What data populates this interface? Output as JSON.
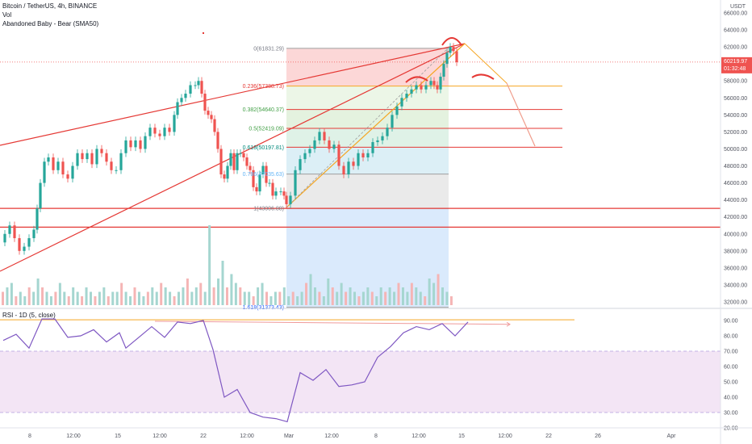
{
  "header": {
    "symbol_line": "Bitcoin / TetherUS, 4h, BINANCE",
    "vol_label": "Vol",
    "indicator_label": "Abandoned Baby - Bear (SMA50)",
    "rsi_label": "RSI - 1D (5, close)"
  },
  "price_axis": {
    "currency": "USDT",
    "ticks": [
      "66000.00",
      "64000.00",
      "62000.00",
      "60000.00",
      "58000.00",
      "56000.00",
      "54000.00",
      "52000.00",
      "50000.00",
      "48000.00",
      "46000.00",
      "44000.00",
      "42000.00",
      "40000.00",
      "38000.00",
      "36000.00",
      "34000.00",
      "32000.00"
    ],
    "last_price": "60219.97",
    "countdown": "01:32:48"
  },
  "rsi_axis": {
    "ticks": [
      "90.00",
      "80.00",
      "70.00",
      "60.00",
      "50.00",
      "40.00",
      "30.00",
      "20.00"
    ]
  },
  "time_axis": {
    "ticks": [
      "8",
      "12:00",
      "15",
      "12:00",
      "22",
      "12:00",
      "Mar",
      "12:00",
      "8",
      "12:00",
      "15",
      "12:00",
      "22",
      "26",
      "Apr"
    ]
  },
  "fib_labels": [
    "0(61831.29)",
    "0.236(57388.73)",
    "0.382(54640.37)",
    "0.5(52419.09)",
    "0.618(50197.81)",
    "0.786(47035.63)",
    "1(43006.88)",
    "1.618(31373.43)"
  ],
  "colors": {
    "up": "#26a69a",
    "down": "#ef5350",
    "trendline": "#e53935",
    "fib_orange": "#f5a623",
    "rsi_line": "#7e57c2",
    "rsi_band": "#f3e5f5",
    "last_price_tag": "#ef5350"
  },
  "chart_data": {
    "type": "candlestick",
    "ylim": [
      31500,
      67000
    ],
    "rsi_ylim": [
      15,
      95
    ],
    "price_path": [
      [
        0,
        39000
      ],
      [
        6,
        40000
      ],
      [
        12,
        41000
      ],
      [
        18,
        39500
      ],
      [
        24,
        38000
      ],
      [
        30,
        38500
      ],
      [
        36,
        39500
      ],
      [
        42,
        40500
      ],
      [
        46,
        43000
      ],
      [
        50,
        46000
      ],
      [
        55,
        48500
      ],
      [
        60,
        49000
      ],
      [
        66,
        47500
      ],
      [
        72,
        48500
      ],
      [
        78,
        47000
      ],
      [
        84,
        46500
      ],
      [
        90,
        48000
      ],
      [
        96,
        49500
      ],
      [
        102,
        48800
      ],
      [
        108,
        49500
      ],
      [
        114,
        48200
      ],
      [
        120,
        50000
      ],
      [
        126,
        49500
      ],
      [
        132,
        48500
      ],
      [
        138,
        47500
      ],
      [
        144,
        47500
      ],
      [
        150,
        49500
      ],
      [
        156,
        51000
      ],
      [
        162,
        50200
      ],
      [
        168,
        51000
      ],
      [
        174,
        50000
      ],
      [
        180,
        51500
      ],
      [
        186,
        52500
      ],
      [
        192,
        51800
      ],
      [
        198,
        51500
      ],
      [
        204,
        52500
      ],
      [
        210,
        52000
      ],
      [
        216,
        54000
      ],
      [
        220,
        55500
      ],
      [
        225,
        56000
      ],
      [
        230,
        56500
      ],
      [
        236,
        57500
      ],
      [
        242,
        57500
      ],
      [
        246,
        58000
      ],
      [
        250,
        56500
      ],
      [
        254,
        54500
      ],
      [
        258,
        54000
      ],
      [
        262,
        53500
      ],
      [
        266,
        52000
      ],
      [
        270,
        50000
      ],
      [
        274,
        47000
      ],
      [
        278,
        46500
      ],
      [
        282,
        48000
      ],
      [
        286,
        49500
      ],
      [
        290,
        47500
      ],
      [
        294,
        49500
      ],
      [
        298,
        49500
      ],
      [
        302,
        49000
      ],
      [
        306,
        48000
      ],
      [
        310,
        47500
      ],
      [
        314,
        45500
      ],
      [
        318,
        45000
      ],
      [
        322,
        47000
      ],
      [
        326,
        48000
      ],
      [
        330,
        46000
      ],
      [
        334,
        46000
      ],
      [
        338,
        44500
      ],
      [
        342,
        45000
      ],
      [
        348,
        45000
      ],
      [
        352,
        44500
      ],
      [
        355,
        43500
      ],
      [
        360,
        44500
      ],
      [
        366,
        47500
      ],
      [
        372,
        48800
      ],
      [
        378,
        49500
      ],
      [
        384,
        50000
      ],
      [
        390,
        51000
      ],
      [
        396,
        52000
      ],
      [
        402,
        51000
      ],
      [
        408,
        50000
      ],
      [
        414,
        50500
      ],
      [
        420,
        48000
      ],
      [
        426,
        47000
      ],
      [
        432,
        48500
      ],
      [
        438,
        48000
      ],
      [
        444,
        49500
      ],
      [
        450,
        49000
      ],
      [
        456,
        49500
      ],
      [
        462,
        50800
      ],
      [
        468,
        51000
      ],
      [
        474,
        51500
      ],
      [
        480,
        52500
      ],
      [
        486,
        54000
      ],
      [
        492,
        55000
      ],
      [
        498,
        56000
      ],
      [
        504,
        56500
      ],
      [
        510,
        57000
      ],
      [
        516,
        57500
      ],
      [
        522,
        57000
      ],
      [
        528,
        57500
      ],
      [
        534,
        58000
      ],
      [
        538,
        57500
      ],
      [
        542,
        57000
      ],
      [
        546,
        58500
      ],
      [
        550,
        60000
      ],
      [
        554,
        61300
      ],
      [
        558,
        62000
      ],
      [
        562,
        61500
      ],
      [
        566,
        60200
      ]
    ],
    "volume": [
      3,
      4,
      5,
      2,
      3,
      2,
      4,
      3,
      6,
      4,
      3,
      2,
      3,
      5,
      3,
      2,
      4,
      3,
      2,
      4,
      3,
      2,
      3,
      4,
      2,
      3,
      3,
      5,
      3,
      2,
      4,
      3,
      2,
      3,
      4,
      3,
      5,
      4,
      3,
      2,
      3,
      4,
      6,
      3,
      4,
      5,
      3,
      18,
      4,
      6,
      10,
      4,
      7,
      5,
      4,
      3,
      3,
      2,
      4,
      5,
      3,
      2,
      3,
      3,
      4,
      2,
      3,
      2,
      3,
      5,
      7,
      4,
      3,
      2,
      6,
      4,
      3,
      5,
      3,
      4,
      3,
      2,
      3,
      4,
      3,
      2,
      4,
      3,
      4,
      3,
      5,
      4,
      3,
      5,
      4,
      3,
      2,
      6,
      5,
      7,
      4,
      3,
      2
    ],
    "rsi": [
      [
        4,
        77
      ],
      [
        20,
        81
      ],
      [
        36,
        72
      ],
      [
        52,
        91
      ],
      [
        68,
        91
      ],
      [
        84,
        79
      ],
      [
        100,
        80
      ],
      [
        116,
        84
      ],
      [
        132,
        76
      ],
      [
        148,
        82
      ],
      [
        156,
        72
      ],
      [
        172,
        79
      ],
      [
        188,
        86
      ],
      [
        204,
        79
      ],
      [
        220,
        89
      ],
      [
        236,
        88
      ],
      [
        252,
        90
      ],
      [
        264,
        71
      ],
      [
        278,
        40
      ],
      [
        294,
        45
      ],
      [
        310,
        30
      ],
      [
        326,
        27
      ],
      [
        342,
        26
      ],
      [
        356,
        24
      ],
      [
        372,
        56
      ],
      [
        388,
        51
      ],
      [
        404,
        58
      ],
      [
        420,
        47
      ],
      [
        436,
        48
      ],
      [
        452,
        50
      ],
      [
        468,
        66
      ],
      [
        484,
        73
      ],
      [
        500,
        82
      ],
      [
        516,
        86
      ],
      [
        532,
        84
      ],
      [
        548,
        88
      ],
      [
        564,
        80
      ],
      [
        580,
        89
      ]
    ],
    "fib_levels": [
      61831.29,
      57388.73,
      54640.37,
      52419.09,
      50197.81,
      47035.63,
      43006.88,
      31373.43
    ],
    "horizontal_lines": [
      43006.88,
      40800
    ],
    "rsi_bands": [
      70,
      30
    ],
    "rsi_reference": 91
  }
}
